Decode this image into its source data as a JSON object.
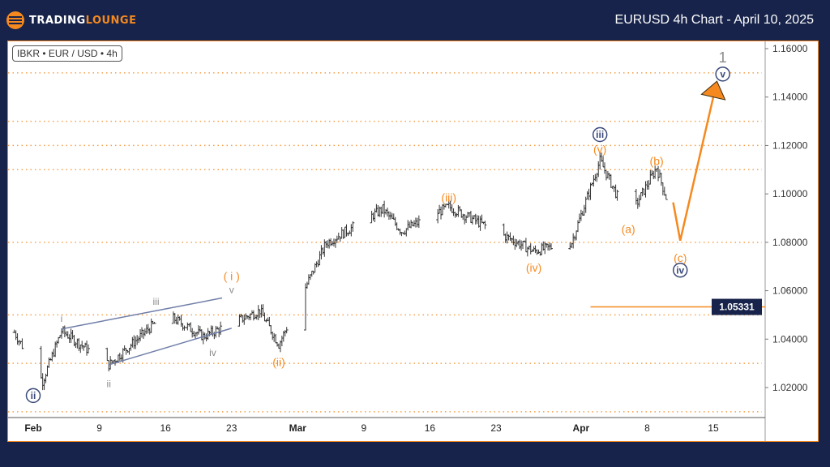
{
  "header": {
    "logo_text_a": "TRADING",
    "logo_text_b": "LOUNGE",
    "title": "EURUSD 4h Chart - April 10, 2025"
  },
  "symbol_label": "IBKR • EUR / USD • 4h",
  "colors": {
    "background": "#17234a",
    "accent": "#f5891f",
    "wave_navy": "#3b4a7a",
    "wave_gray": "#8a8a8a",
    "bars": "#333333"
  },
  "chart_data": {
    "type": "ohlc-bar",
    "ylim": [
      1.008,
      1.165
    ],
    "y_ticks": [
      "1.16000",
      "1.14000",
      "1.12000",
      "1.10000",
      "1.08000",
      "1.06000",
      "1.04000",
      "1.02000"
    ],
    "y_tick_values": [
      1.16,
      1.14,
      1.12,
      1.1,
      1.08,
      1.06,
      1.04,
      1.02
    ],
    "dotted_levels": [
      1.15,
      1.13,
      1.12,
      1.11,
      1.08,
      1.05,
      1.03,
      1.01
    ],
    "x_ticks": [
      {
        "label": "Feb",
        "date": "2025-02-02"
      },
      {
        "label": "9",
        "date": "2025-02-09"
      },
      {
        "label": "16",
        "date": "2025-02-16"
      },
      {
        "label": "23",
        "date": "2025-02-23"
      },
      {
        "label": "Mar",
        "date": "2025-03-02"
      },
      {
        "label": "9",
        "date": "2025-03-09"
      },
      {
        "label": "16",
        "date": "2025-03-16"
      },
      {
        "label": "23",
        "date": "2025-03-23"
      },
      {
        "label": "Apr",
        "date": "2025-04-01"
      },
      {
        "label": "8",
        "date": "2025-04-08"
      },
      {
        "label": "15",
        "date": "2025-04-15"
      }
    ],
    "xlim": [
      "2025-01-31",
      "2025-04-21"
    ],
    "price_path": [
      {
        "date": "2025-01-31",
        "price": 1.0428
      },
      {
        "date": "2025-02-03",
        "price": 1.0227
      },
      {
        "date": "2025-02-05",
        "price": 1.0434
      },
      {
        "date": "2025-02-10",
        "price": 1.0294
      },
      {
        "date": "2025-02-16",
        "price": 1.0505
      },
      {
        "date": "2025-02-20",
        "price": 1.0411
      },
      {
        "date": "2025-02-26",
        "price": 1.0518
      },
      {
        "date": "2025-02-28",
        "price": 1.0378
      },
      {
        "date": "2025-03-05",
        "price": 1.0796
      },
      {
        "date": "2025-03-11",
        "price": 1.0937
      },
      {
        "date": "2025-03-13",
        "price": 1.0846
      },
      {
        "date": "2025-03-18",
        "price": 1.0947
      },
      {
        "date": "2025-03-27",
        "price": 1.0763
      },
      {
        "date": "2025-03-31",
        "price": 1.08
      },
      {
        "date": "2025-04-03",
        "price": 1.1138
      },
      {
        "date": "2025-04-06",
        "price": 1.0897
      },
      {
        "date": "2025-04-09",
        "price": 1.1109
      },
      {
        "date": "2025-04-10",
        "price": 1.0985
      }
    ],
    "projection": [
      {
        "date": "2025-04-10T18:00",
        "price": 1.0965
      },
      {
        "date": "2025-04-11T12:00",
        "price": 1.0807
      },
      {
        "date": "2025-04-15",
        "price": 1.14
      }
    ],
    "level_line": {
      "price": 1.05331,
      "label": "1.05331",
      "from": "2025-04-02"
    },
    "wave_labels": [
      {
        "text": "ii",
        "date": "2025-02-02",
        "price": 1.0167,
        "style": "circle-navy"
      },
      {
        "text": "i",
        "date": "2025-02-05",
        "price": 1.0485,
        "style": "gray"
      },
      {
        "text": "ii",
        "date": "2025-02-10",
        "price": 1.0215,
        "style": "gray"
      },
      {
        "text": "iii",
        "date": "2025-02-15",
        "price": 1.0555,
        "style": "gray"
      },
      {
        "text": "iv",
        "date": "2025-02-21",
        "price": 1.0345,
        "style": "gray"
      },
      {
        "text": "v",
        "date": "2025-02-23",
        "price": 1.0605,
        "style": "gray"
      },
      {
        "text": "( i )",
        "date": "2025-02-23",
        "price": 1.066,
        "style": "orange"
      },
      {
        "text": "(ii)",
        "date": "2025-02-28",
        "price": 1.0305,
        "style": "orange"
      },
      {
        "text": "(iii)",
        "date": "2025-03-18",
        "price": 1.0985,
        "style": "orange"
      },
      {
        "text": "(iv)",
        "date": "2025-03-27",
        "price": 1.0695,
        "style": "orange"
      },
      {
        "text": "iii",
        "date": "2025-04-03",
        "price": 1.1245,
        "style": "circle-navy"
      },
      {
        "text": "(v)",
        "date": "2025-04-03",
        "price": 1.1185,
        "style": "orange"
      },
      {
        "text": "(a)",
        "date": "2025-04-06",
        "price": 1.0855,
        "style": "orange"
      },
      {
        "text": "(b)",
        "date": "2025-04-09",
        "price": 1.1135,
        "style": "orange"
      },
      {
        "text": "(c)",
        "date": "2025-04-11T12:00",
        "price": 1.0735,
        "style": "orange"
      },
      {
        "text": "iv",
        "date": "2025-04-11T12:00",
        "price": 1.0685,
        "style": "circle-navy"
      },
      {
        "text": "v",
        "date": "2025-04-16",
        "price": 1.1495,
        "style": "circle-navy"
      },
      {
        "text": "1",
        "date": "2025-04-16",
        "price": 1.1565,
        "style": "gray-large"
      }
    ],
    "channel_lines": [
      [
        {
          "date": "2025-02-05",
          "price": 1.0442
        },
        {
          "date": "2025-02-22",
          "price": 1.057
        }
      ],
      [
        {
          "date": "2025-02-10",
          "price": 1.0294
        },
        {
          "date": "2025-02-23",
          "price": 1.0445
        }
      ]
    ]
  }
}
